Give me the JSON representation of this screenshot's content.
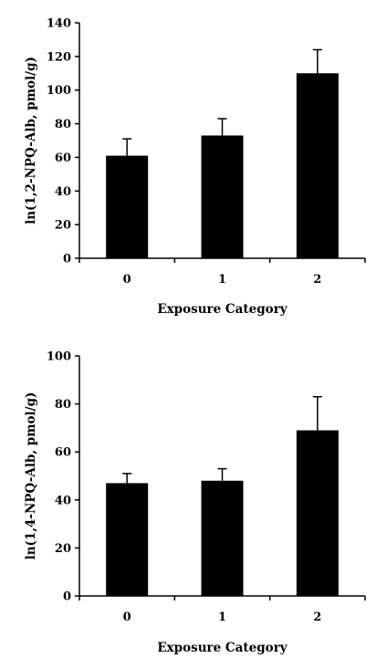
{
  "chart_data": [
    {
      "type": "bar",
      "categories": [
        "0",
        "1",
        "2"
      ],
      "values": [
        61,
        73,
        110
      ],
      "errors": [
        10,
        10,
        14
      ],
      "xlabel": "Exposure Category",
      "ylabel": "ln(1,2-NPQ-Alb, pmol/g)",
      "ylim": [
        0,
        140
      ],
      "yticks": [
        "0",
        "20",
        "40",
        "60",
        "80",
        "100",
        "120",
        "140"
      ],
      "grid": false,
      "bar_color": "#000000"
    },
    {
      "type": "bar",
      "categories": [
        "0",
        "1",
        "2"
      ],
      "values": [
        47,
        48,
        69
      ],
      "errors": [
        4,
        5,
        14
      ],
      "xlabel": "Exposure Category",
      "ylabel": "ln(1,4-NPQ-Alb, pmol/g)",
      "ylim": [
        0,
        100
      ],
      "yticks": [
        "0",
        "20",
        "40",
        "60",
        "80",
        "100"
      ],
      "grid": false,
      "bar_color": "#000000"
    }
  ]
}
